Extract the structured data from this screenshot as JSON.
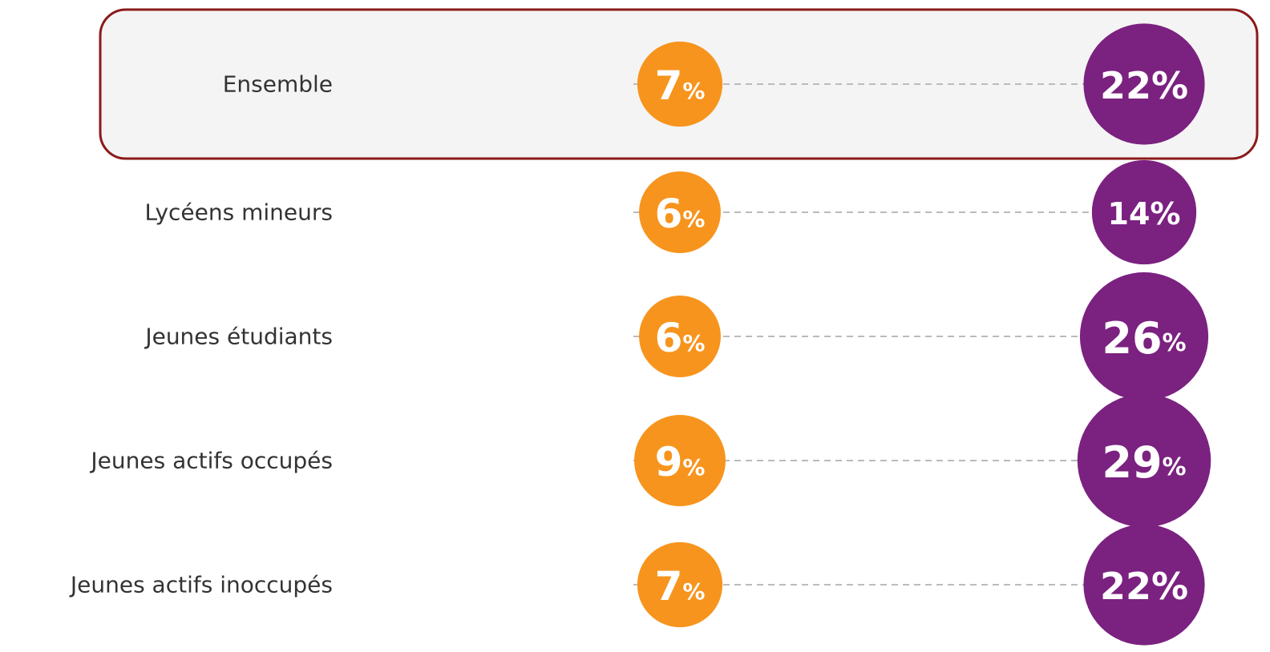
{
  "chart_data": {
    "type": "dumbbell",
    "categories": [
      "Ensemble",
      "Lycéens mineurs",
      "Jeunes étudiants",
      "Jeunes actifs occupés",
      "Jeunes actifs inoccupés"
    ],
    "series": [
      {
        "color": "#f7941d",
        "values": [
          7,
          6,
          6,
          9,
          7
        ],
        "value_labels": [
          "7%",
          "6%",
          "6%",
          "9%",
          "7%"
        ]
      },
      {
        "color": "#7b2180",
        "values": [
          22,
          14,
          26,
          29,
          22
        ],
        "value_labels": [
          "22%",
          "14%",
          "26%",
          "29%",
          "22%"
        ]
      }
    ],
    "highlight": 0
  }
}
